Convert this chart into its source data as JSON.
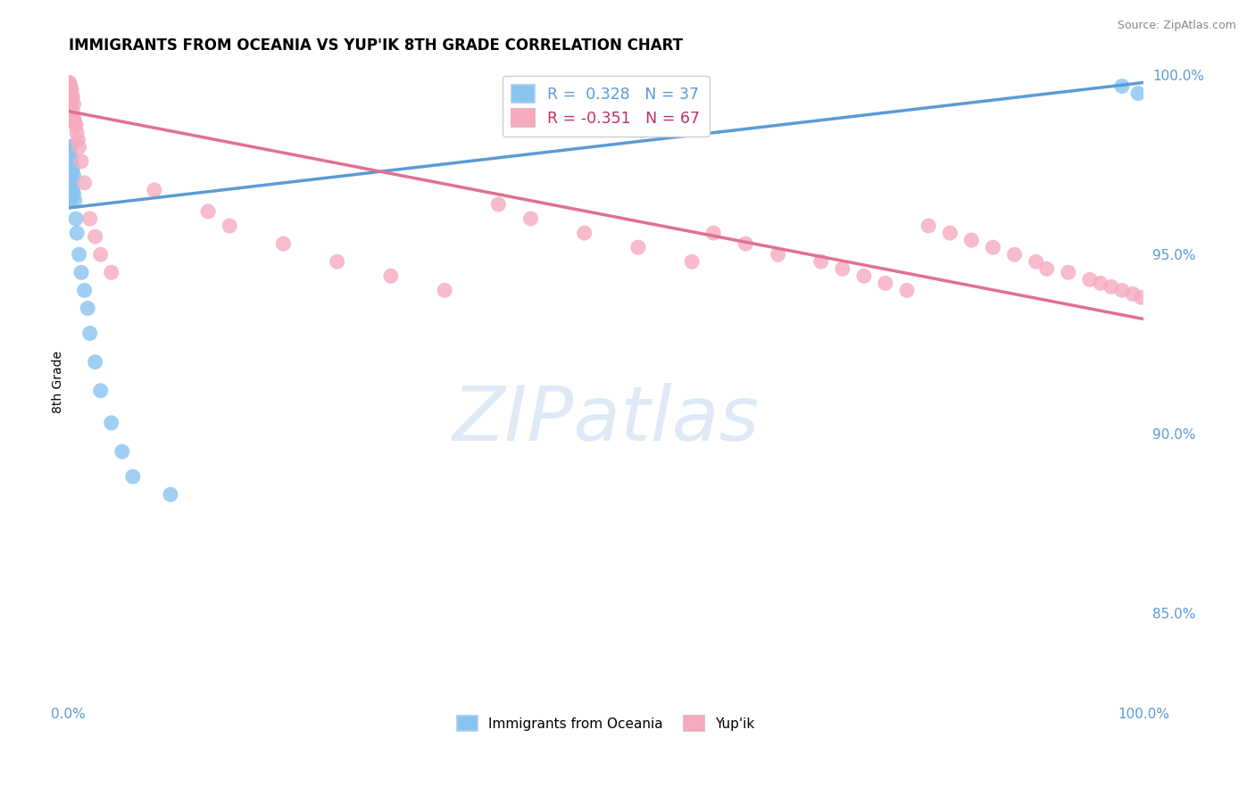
{
  "title": "IMMIGRANTS FROM OCEANIA VS YUP'IK 8TH GRADE CORRELATION CHART",
  "source": "Source: ZipAtlas.com",
  "ylabel": "8th Grade",
  "legend_blue": "R =  0.328   N = 37",
  "legend_pink": "R = -0.351   N = 67",
  "blue_color": "#89C4F0",
  "pink_color": "#F5AABE",
  "blue_line_color": "#5B9BD5",
  "pink_line_color": "#E07090",
  "background_color": "#ffffff",
  "grid_color": "#D8D8D8",
  "blue_x": [
    0.0,
    0.0,
    0.0,
    0.0,
    0.001,
    0.001,
    0.001,
    0.001,
    0.001,
    0.002,
    0.002,
    0.002,
    0.002,
    0.003,
    0.003,
    0.003,
    0.003,
    0.004,
    0.004,
    0.005,
    0.005,
    0.006,
    0.007,
    0.008,
    0.01,
    0.012,
    0.015,
    0.018,
    0.02,
    0.025,
    0.03,
    0.04,
    0.05,
    0.06,
    0.095,
    0.98,
    0.995
  ],
  "blue_y": [
    0.98,
    0.976,
    0.972,
    0.968,
    0.978,
    0.976,
    0.973,
    0.97,
    0.965,
    0.98,
    0.976,
    0.972,
    0.968,
    0.977,
    0.973,
    0.97,
    0.966,
    0.974,
    0.968,
    0.972,
    0.967,
    0.965,
    0.96,
    0.956,
    0.95,
    0.945,
    0.94,
    0.935,
    0.928,
    0.92,
    0.912,
    0.903,
    0.895,
    0.888,
    0.883,
    0.997,
    0.995
  ],
  "pink_x": [
    0.0,
    0.0,
    0.0,
    0.001,
    0.001,
    0.001,
    0.001,
    0.001,
    0.001,
    0.002,
    0.002,
    0.002,
    0.002,
    0.002,
    0.003,
    0.003,
    0.003,
    0.003,
    0.004,
    0.004,
    0.005,
    0.005,
    0.006,
    0.007,
    0.008,
    0.009,
    0.01,
    0.012,
    0.015,
    0.02,
    0.025,
    0.03,
    0.04,
    0.08,
    0.13,
    0.15,
    0.2,
    0.25,
    0.3,
    0.35,
    0.4,
    0.43,
    0.48,
    0.53,
    0.58,
    0.6,
    0.63,
    0.66,
    0.7,
    0.72,
    0.74,
    0.76,
    0.78,
    0.8,
    0.82,
    0.84,
    0.86,
    0.88,
    0.9,
    0.91,
    0.93,
    0.95,
    0.96,
    0.97,
    0.98,
    0.99,
    0.998
  ],
  "pink_y": [
    0.998,
    0.997,
    0.996,
    0.998,
    0.997,
    0.996,
    0.995,
    0.994,
    0.992,
    0.997,
    0.996,
    0.994,
    0.992,
    0.99,
    0.996,
    0.994,
    0.992,
    0.988,
    0.994,
    0.99,
    0.992,
    0.988,
    0.987,
    0.986,
    0.984,
    0.982,
    0.98,
    0.976,
    0.97,
    0.96,
    0.955,
    0.95,
    0.945,
    0.968,
    0.962,
    0.958,
    0.953,
    0.948,
    0.944,
    0.94,
    0.964,
    0.96,
    0.956,
    0.952,
    0.948,
    0.956,
    0.953,
    0.95,
    0.948,
    0.946,
    0.944,
    0.942,
    0.94,
    0.958,
    0.956,
    0.954,
    0.952,
    0.95,
    0.948,
    0.946,
    0.945,
    0.943,
    0.942,
    0.941,
    0.94,
    0.939,
    0.938
  ],
  "xlim": [
    0.0,
    1.0
  ],
  "ylim": [
    0.826,
    1.003
  ],
  "yticks": [
    0.85,
    0.9,
    0.95,
    1.0
  ],
  "ytick_labels": [
    "85.0%",
    "90.0%",
    "95.0%",
    "100.0%"
  ],
  "xtick_labels": [
    "0.0%",
    "100.0%"
  ],
  "xtick_vals": [
    0.0,
    1.0
  ],
  "watermark": "ZIPatlas",
  "watermark_color": "#C5D8F0"
}
